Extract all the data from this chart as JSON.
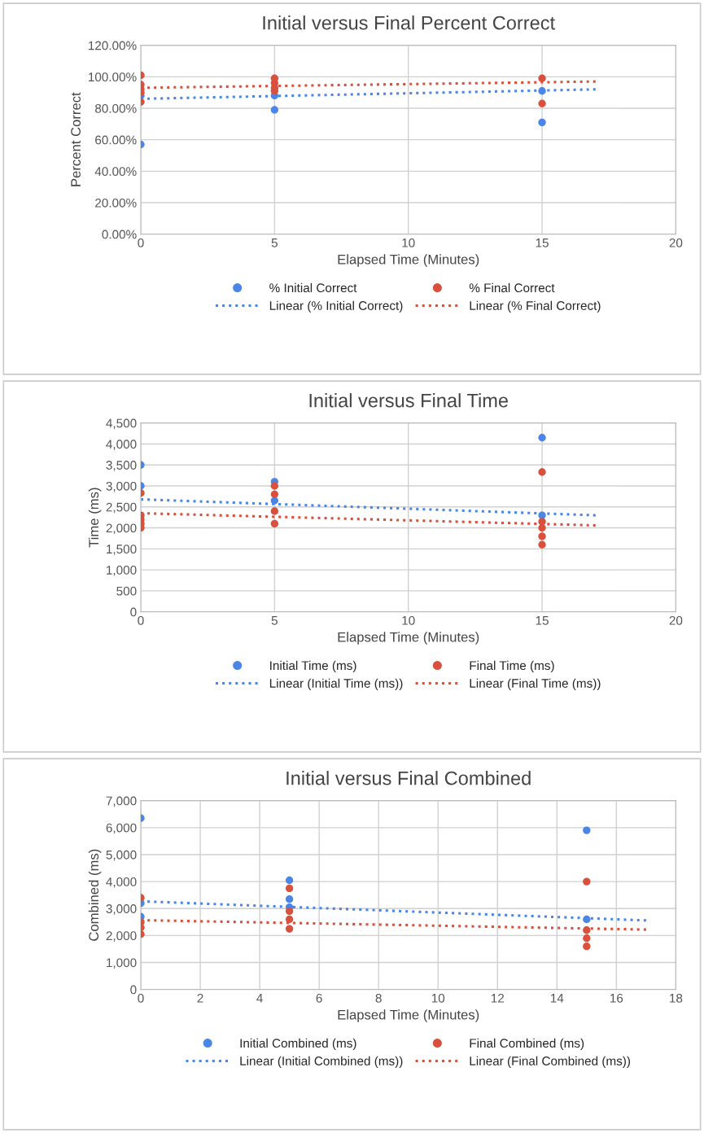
{
  "chart_data": [
    {
      "type": "scatter",
      "title": "Initial versus Final Percent Correct",
      "xlabel": "Elapsed Time (Minutes)",
      "ylabel": "Percent Correct",
      "xlim": [
        0,
        20
      ],
      "xticks": [
        0,
        5,
        10,
        15,
        20
      ],
      "ylim": [
        0,
        120
      ],
      "yticks": [
        {
          "value": 0,
          "label": "0.00%"
        },
        {
          "value": 20,
          "label": "20.00%"
        },
        {
          "value": 40,
          "label": "40.00%"
        },
        {
          "value": 60,
          "label": "60.00%"
        },
        {
          "value": 80,
          "label": "80.00%"
        },
        {
          "value": 100,
          "label": "100.00%"
        },
        {
          "value": 120,
          "label": "120.00%"
        }
      ],
      "grid": true,
      "legend": "bottom",
      "marker": "circle",
      "series": [
        {
          "name": "% Initial Correct",
          "color": "#4a86e8",
          "x": [
            0,
            0,
            5,
            5,
            15,
            15
          ],
          "values": [
            57,
            88,
            79,
            88,
            71,
            91
          ]
        },
        {
          "name": "% Final Correct",
          "color": "#d9503c",
          "x": [
            0,
            0,
            0,
            0,
            0,
            5,
            5,
            5,
            5,
            15,
            15
          ],
          "values": [
            101,
            95,
            92,
            90,
            84,
            99,
            96,
            93,
            91,
            99,
            83
          ]
        },
        {
          "name": "Linear (% Initial Correct)",
          "type": "line",
          "marker": "none",
          "line_style": "dotted",
          "color": "#4a86e8",
          "x": [
            0,
            17
          ],
          "values": [
            86,
            92
          ]
        },
        {
          "name": "Linear (% Final Correct)",
          "type": "line",
          "marker": "none",
          "line_style": "dotted",
          "color": "#d9503c",
          "x": [
            0,
            17
          ],
          "values": [
            93,
            97
          ]
        }
      ]
    },
    {
      "type": "scatter",
      "title": "Initial versus Final Time",
      "xlabel": "Elapsed Time (Minutes)",
      "ylabel": "Time (ms)",
      "xlim": [
        0,
        20
      ],
      "xticks": [
        0,
        5,
        10,
        15,
        20
      ],
      "ylim": [
        0,
        4500
      ],
      "yticks": [
        {
          "value": 0,
          "label": "0"
        },
        {
          "value": 500,
          "label": "500"
        },
        {
          "value": 1000,
          "label": "1,000"
        },
        {
          "value": 1500,
          "label": "1,500"
        },
        {
          "value": 2000,
          "label": "2,000"
        },
        {
          "value": 2500,
          "label": "2,500"
        },
        {
          "value": 3000,
          "label": "3,000"
        },
        {
          "value": 3500,
          "label": "3,500"
        },
        {
          "value": 4000,
          "label": "4,000"
        },
        {
          "value": 4500,
          "label": "4,500"
        }
      ],
      "grid": true,
      "legend": "bottom",
      "marker": "circle",
      "series": [
        {
          "name": "Initial Time (ms)",
          "color": "#4a86e8",
          "x": [
            0,
            0,
            5,
            5,
            15,
            15
          ],
          "values": [
            3500,
            3000,
            3100,
            2650,
            4150,
            2300
          ]
        },
        {
          "name": "Final Time (ms)",
          "color": "#d9503c",
          "x": [
            0,
            0,
            0,
            0,
            0,
            5,
            5,
            5,
            5,
            15,
            15,
            15,
            15,
            15
          ],
          "values": [
            2830,
            2300,
            2200,
            2100,
            2000,
            3000,
            2800,
            2400,
            2100,
            3330,
            2150,
            2000,
            1800,
            1600
          ]
        },
        {
          "name": "Linear (Initial Time (ms))",
          "type": "line",
          "marker": "none",
          "line_style": "dotted",
          "color": "#4a86e8",
          "x": [
            0,
            17
          ],
          "values": [
            2680,
            2300
          ]
        },
        {
          "name": "Linear (Final Time (ms))",
          "type": "line",
          "marker": "none",
          "line_style": "dotted",
          "color": "#d9503c",
          "x": [
            0,
            17
          ],
          "values": [
            2350,
            2060
          ]
        }
      ]
    },
    {
      "type": "scatter",
      "title": "Initial versus Final Combined",
      "xlabel": "Elapsed Time (Minutes)",
      "ylabel": "Combined (ms)",
      "xlim": [
        0,
        18
      ],
      "xticks": [
        0,
        2,
        4,
        6,
        8,
        10,
        12,
        14,
        16,
        18
      ],
      "ylim": [
        0,
        7000
      ],
      "yticks": [
        {
          "value": 0,
          "label": "0"
        },
        {
          "value": 1000,
          "label": "1,000"
        },
        {
          "value": 2000,
          "label": "2,000"
        },
        {
          "value": 3000,
          "label": "3,000"
        },
        {
          "value": 4000,
          "label": "4,000"
        },
        {
          "value": 5000,
          "label": "5,000"
        },
        {
          "value": 6000,
          "label": "6,000"
        },
        {
          "value": 7000,
          "label": "7,000"
        }
      ],
      "grid": true,
      "legend": "bottom",
      "marker": "circle",
      "series": [
        {
          "name": "Initial Combined (ms)",
          "color": "#4a86e8",
          "x": [
            0,
            0,
            0,
            5,
            5,
            5,
            15,
            15
          ],
          "values": [
            6350,
            3200,
            2700,
            4050,
            3350,
            3050,
            5900,
            2600
          ]
        },
        {
          "name": "Final Combined (ms)",
          "color": "#d9503c",
          "x": [
            0,
            0,
            0,
            0,
            5,
            5,
            5,
            5,
            15,
            15,
            15,
            15
          ],
          "values": [
            3400,
            2500,
            2300,
            2050,
            3750,
            2900,
            2600,
            2250,
            4000,
            2200,
            1900,
            1600
          ]
        },
        {
          "name": "Linear (Initial Combined (ms))",
          "type": "line",
          "marker": "none",
          "line_style": "dotted",
          "color": "#4a86e8",
          "x": [
            0,
            17
          ],
          "values": [
            3270,
            2560
          ]
        },
        {
          "name": "Linear (Final Combined (ms))",
          "type": "line",
          "marker": "none",
          "line_style": "dotted",
          "color": "#d9503c",
          "x": [
            0,
            17
          ],
          "values": [
            2570,
            2220
          ]
        }
      ]
    }
  ]
}
